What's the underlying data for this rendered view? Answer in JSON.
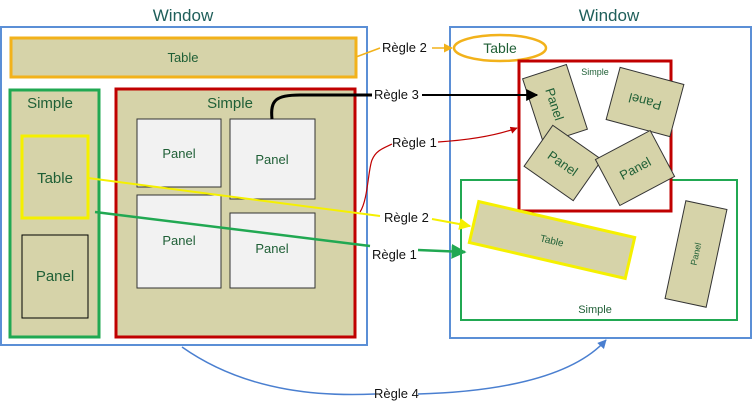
{
  "left_window": {
    "title": "Window",
    "table_bar": "Table",
    "simple_left": {
      "title": "Simple",
      "table": "Table",
      "panel": "Panel"
    },
    "simple_main": {
      "title": "Simple",
      "panels": [
        "Panel",
        "Panel",
        "Panel",
        "Panel"
      ]
    }
  },
  "right_window": {
    "title": "Window",
    "table_ellipse": "Table",
    "simple_red": {
      "title": "Simple",
      "panels": [
        "Panel",
        "Panel",
        "Panel",
        "Panel"
      ]
    },
    "simple_green": {
      "title": "Simple",
      "table": "Table",
      "panel": "Panel"
    }
  },
  "rules": {
    "rule2_top": "Règle 2",
    "rule3": "Règle 3",
    "rule1_top": "Règle 1",
    "rule2_mid": "Règle 2",
    "rule1_mid": "Règle 1",
    "rule4": "Règle 4"
  },
  "colors": {
    "window_border": "#5b8fd6",
    "table_orange": "#f2b21b",
    "simple_green": "#21a852",
    "simple_red": "#c00000",
    "table_yellow": "#f5f000",
    "fill_olive": "#d6d3a9",
    "panel_fill": "#f2f2f2",
    "arrow_black": "#000000",
    "arrow_blue": "#4a7fd0"
  }
}
